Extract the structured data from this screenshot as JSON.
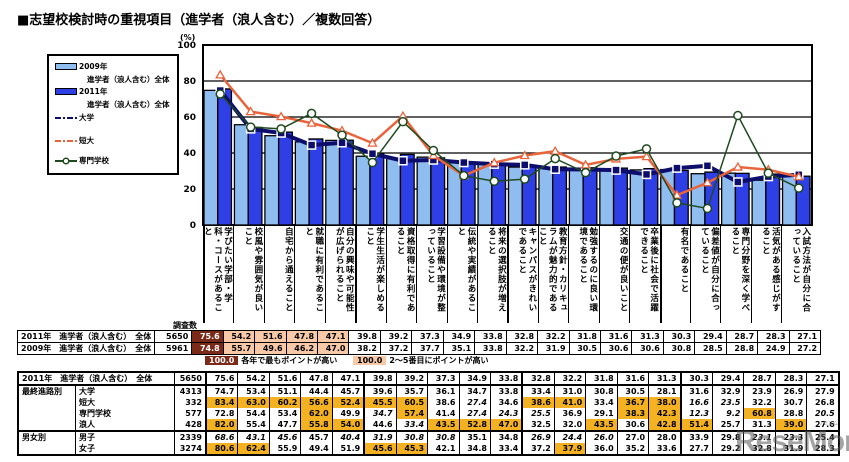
{
  "title": "■志望校検討時の重視項目（進学者（浪人含む）／複数回答）",
  "chart_data": {
    "type": "bar",
    "title": "志望校検討時の重視項目（進学者（浪人含む）／複数回答）",
    "ylabel": "(%)",
    "ylim": [
      0,
      100
    ],
    "yticks": [
      0,
      20,
      40,
      60,
      80,
      100
    ],
    "grid": true,
    "legend_position": "left",
    "categories": [
      "学びたい学部・学科・コースがあること",
      "校風や雰囲気が良いこと",
      "自宅から通えること",
      "就職に有利であること",
      "自分の興味や可能性が広げられること",
      "学生生活が楽しめること",
      "資格取得に有利であること",
      "学習設備や環境が整っていること",
      "伝統や実績があること",
      "将来の選択肢が増えること",
      "キャンパスがきれいであること",
      "教育方針・カリキュラムが魅力的であること",
      "勉強するのに良い環境であること",
      "交通の便が良いこと",
      "卒業後に社会で活躍できること",
      "有名であること",
      "偏差値が自分に合っていること",
      "専門分野を深く学べること",
      "活気がある感じがすること",
      "入試方法が自分に合っていること"
    ],
    "series": [
      {
        "name": "2009年 進学者（浪人含む）全体",
        "type": "bar",
        "color": "#8fbdf0",
        "values": [
          74.8,
          55.7,
          49.6,
          46.2,
          47.0,
          38.2,
          37.2,
          37.7,
          35.1,
          33.8,
          32.2,
          31.9,
          30.5,
          30.6,
          30.6,
          30.8,
          28.5,
          28.8,
          24.9,
          27.2
        ]
      },
      {
        "name": "2011年 進学者（浪人含む）全体",
        "type": "bar",
        "color": "#2e3fe6",
        "values": [
          75.6,
          54.2,
          51.6,
          47.8,
          47.1,
          39.8,
          39.2,
          37.3,
          34.9,
          33.8,
          32.8,
          32.2,
          31.8,
          31.6,
          31.3,
          30.3,
          29.4,
          28.7,
          28.3,
          27.1
        ]
      },
      {
        "name": "大学",
        "type": "line",
        "color": "#0d0d6b",
        "values": [
          74.7,
          53.4,
          51.1,
          44.4,
          45.7,
          39.6,
          35.7,
          36.1,
          34.7,
          33.8,
          33.4,
          31.0,
          30.8,
          30.5,
          28.1,
          31.6,
          32.9,
          23.9,
          26.9,
          27.9
        ]
      },
      {
        "name": "短大",
        "type": "line",
        "color": "#e8643c",
        "values": [
          83.4,
          63.0,
          60.2,
          56.6,
          52.4,
          45.5,
          60.5,
          38.6,
          27.4,
          34.6,
          38.6,
          41.0,
          33.4,
          36.7,
          38.0,
          16.6,
          23.5,
          32.2,
          30.7,
          26.8
        ]
      },
      {
        "name": "専門学校",
        "type": "line",
        "color": "#1f4a1f",
        "values": [
          72.8,
          54.4,
          53.4,
          62.0,
          49.9,
          34.7,
          57.4,
          41.4,
          27.4,
          24.3,
          25.5,
          36.9,
          29.1,
          38.3,
          42.3,
          12.3,
          9.2,
          60.8,
          28.8,
          20.5
        ]
      }
    ]
  },
  "legend": {
    "items": [
      {
        "label": "2009年",
        "sub": "進学者（浪人含む）全体"
      },
      {
        "label": "2011年",
        "sub": "進学者（浪人含む）全体"
      },
      {
        "label": "大学"
      },
      {
        "label": "短大"
      },
      {
        "label": "専門学校"
      }
    ]
  },
  "axis": {
    "unit": "(%)",
    "ticks": [
      "100",
      "80",
      "60",
      "40",
      "20",
      "0"
    ]
  },
  "category_labels": [
    "学びたい学部・学科・コースがあること",
    "校風や雰囲気が良いこと",
    "自宅から通えること",
    "就職に有利であること",
    "自分の興味や可能性が広げられること",
    "学生生活が楽しめること",
    "資格取得に有利であること",
    "学習設備や環境が整っていること",
    "伝統や実績があること",
    "将来の選択肢が増えること",
    "キャンパスがきれいであること",
    "教育方針・カリキュラムが魅力的であること",
    "勉強するのに良い環境であること",
    "交通の便が良いこと",
    "卒業後に社会で活躍できること",
    "有名であること",
    "偏差値が自分に合っていること",
    "専門分野を深く学べること",
    "活気がある感じがすること",
    "入試方法が自分に合っていること"
  ],
  "table1": {
    "n_header": "調査数",
    "rows": [
      {
        "label": "2011年　進学者（浪人含む）　全体",
        "n": "5650",
        "values": [
          "75.6",
          "54.2",
          "51.6",
          "47.8",
          "47.1",
          "39.8",
          "39.2",
          "37.3",
          "34.9",
          "33.8",
          "32.8",
          "32.2",
          "31.8",
          "31.6",
          "31.3",
          "30.3",
          "29.4",
          "28.7",
          "28.3",
          "27.1"
        ],
        "style": [
          "top",
          "hi",
          "hi",
          "hi",
          "hi",
          "",
          "",
          "",
          "",
          "",
          "",
          "",
          "",
          "",
          "",
          "",
          "",
          "",
          "",
          ""
        ]
      },
      {
        "label": "2009年　進学者（浪人含む）　全体",
        "n": "5961",
        "values": [
          "74.8",
          "55.7",
          "49.6",
          "46.2",
          "47.0",
          "38.2",
          "37.2",
          "37.7",
          "35.1",
          "33.8",
          "32.2",
          "31.9",
          "30.5",
          "30.6",
          "30.6",
          "30.8",
          "28.5",
          "28.8",
          "24.9",
          "27.2"
        ],
        "style": [
          "top",
          "hi",
          "hi",
          "hi",
          "hi",
          "",
          "",
          "",
          "",
          "",
          "",
          "",
          "",
          "",
          "",
          "",
          "",
          "",
          "",
          ""
        ]
      }
    ]
  },
  "color_legend": {
    "top_value": "100.0",
    "top_label": "各年で最もポイントが高い",
    "hi_value": "100.0",
    "hi_label": "2～5番目にポイントが高い"
  },
  "table2": {
    "total": {
      "label": "2011年　進学者（浪人含む）　全体",
      "n": "5650",
      "values": [
        "75.6",
        "54.2",
        "51.6",
        "47.8",
        "47.1",
        "39.8",
        "39.2",
        "37.3",
        "34.9",
        "33.8",
        "32.8",
        "32.2",
        "31.8",
        "31.6",
        "31.3",
        "30.3",
        "29.4",
        "28.7",
        "28.3",
        "27.1"
      ]
    },
    "groups": [
      {
        "group": "最終進路別",
        "rows": [
          {
            "label": "大学",
            "n": "4313",
            "values": [
              "74.7",
              "53.4",
              "51.1",
              "44.4",
              "45.7",
              "39.6",
              "35.7",
              "36.1",
              "34.7",
              "33.8",
              "33.4",
              "31.0",
              "30.8",
              "30.5",
              "28.1",
              "31.6",
              "32.9",
              "23.9",
              "26.9",
              "27.9"
            ],
            "style": [
              "",
              "",
              "",
              "",
              "",
              "",
              "",
              "",
              "",
              "",
              "",
              "",
              "",
              "",
              "",
              "",
              "",
              "",
              "",
              ""
            ]
          },
          {
            "label": "短大",
            "n": "332",
            "values": [
              "83.4",
              "63.0",
              "60.2",
              "56.6",
              "52.4",
              "45.5",
              "60.5",
              "38.6",
              "27.4",
              "34.6",
              "38.6",
              "41.0",
              "33.4",
              "36.7",
              "38.0",
              "16.6",
              "23.5",
              "32.2",
              "30.7",
              "26.8"
            ],
            "style": [
              "g",
              "g",
              "g",
              "g",
              "g",
              "g",
              "g",
              "",
              "i",
              "",
              "g",
              "g",
              "",
              "g",
              "g",
              "i",
              "i",
              "",
              "",
              ""
            ]
          },
          {
            "label": "専門学校",
            "n": "577",
            "values": [
              "72.8",
              "54.4",
              "53.4",
              "62.0",
              "49.9",
              "34.7",
              "57.4",
              "41.4",
              "27.4",
              "24.3",
              "25.5",
              "36.9",
              "29.1",
              "38.3",
              "42.3",
              "12.3",
              "9.2",
              "60.8",
              "28.8",
              "20.5"
            ],
            "style": [
              "",
              "",
              "",
              "g",
              "",
              "i",
              "g",
              "",
              "i",
              "i",
              "i",
              "",
              "",
              "g",
              "g",
              "i",
              "i",
              "g",
              "",
              "i"
            ]
          },
          {
            "label": "浪人",
            "n": "428",
            "values": [
              "82.0",
              "55.4",
              "47.7",
              "55.8",
              "54.0",
              "44.6",
              "33.4",
              "43.5",
              "52.8",
              "47.0",
              "32.5",
              "32.0",
              "43.5",
              "30.6",
              "42.8",
              "51.4",
              "25.7",
              "31.3",
              "39.0",
              "27.6"
            ],
            "style": [
              "g",
              "",
              "",
              "g",
              "g",
              "",
              "i",
              "g",
              "g",
              "g",
              "",
              "",
              "g",
              "",
              "g",
              "g",
              "",
              "",
              "g",
              ""
            ]
          }
        ]
      },
      {
        "group": "男女別",
        "rows": [
          {
            "label": "男子",
            "n": "2339",
            "values": [
              "68.6",
              "43.1",
              "45.6",
              "45.7",
              "40.4",
              "31.9",
              "30.8",
              "30.8",
              "35.1",
              "34.8",
              "26.9",
              "24.4",
              "26.0",
              "27.0",
              "28.0",
              "33.9",
              "29.8",
              "23.1",
              "23.3",
              "25.4"
            ],
            "style": [
              "i",
              "i",
              "i",
              "",
              "i",
              "i",
              "i",
              "i",
              "",
              "",
              "i",
              "i",
              "i",
              "",
              "",
              "",
              "",
              "i",
              "",
              ""
            ]
          },
          {
            "label": "女子",
            "n": "3274",
            "values": [
              "80.6",
              "62.4",
              "55.9",
              "49.4",
              "51.9",
              "45.6",
              "45.3",
              "42.1",
              "34.8",
              "33.4",
              "37.2",
              "37.9",
              "36.0",
              "35.2",
              "33.6",
              "27.7",
              "29.2",
              "32.8",
              "31.9",
              "28.3"
            ],
            "style": [
              "g",
              "g",
              "",
              "",
              "",
              "g",
              "g",
              "",
              "",
              "",
              "",
              "g",
              "",
              "",
              "",
              "",
              "",
              "",
              "",
              ""
            ]
          }
        ]
      }
    ]
  },
  "watermark": {
    "text": "ReseMom.",
    "small": "リセマム"
  }
}
